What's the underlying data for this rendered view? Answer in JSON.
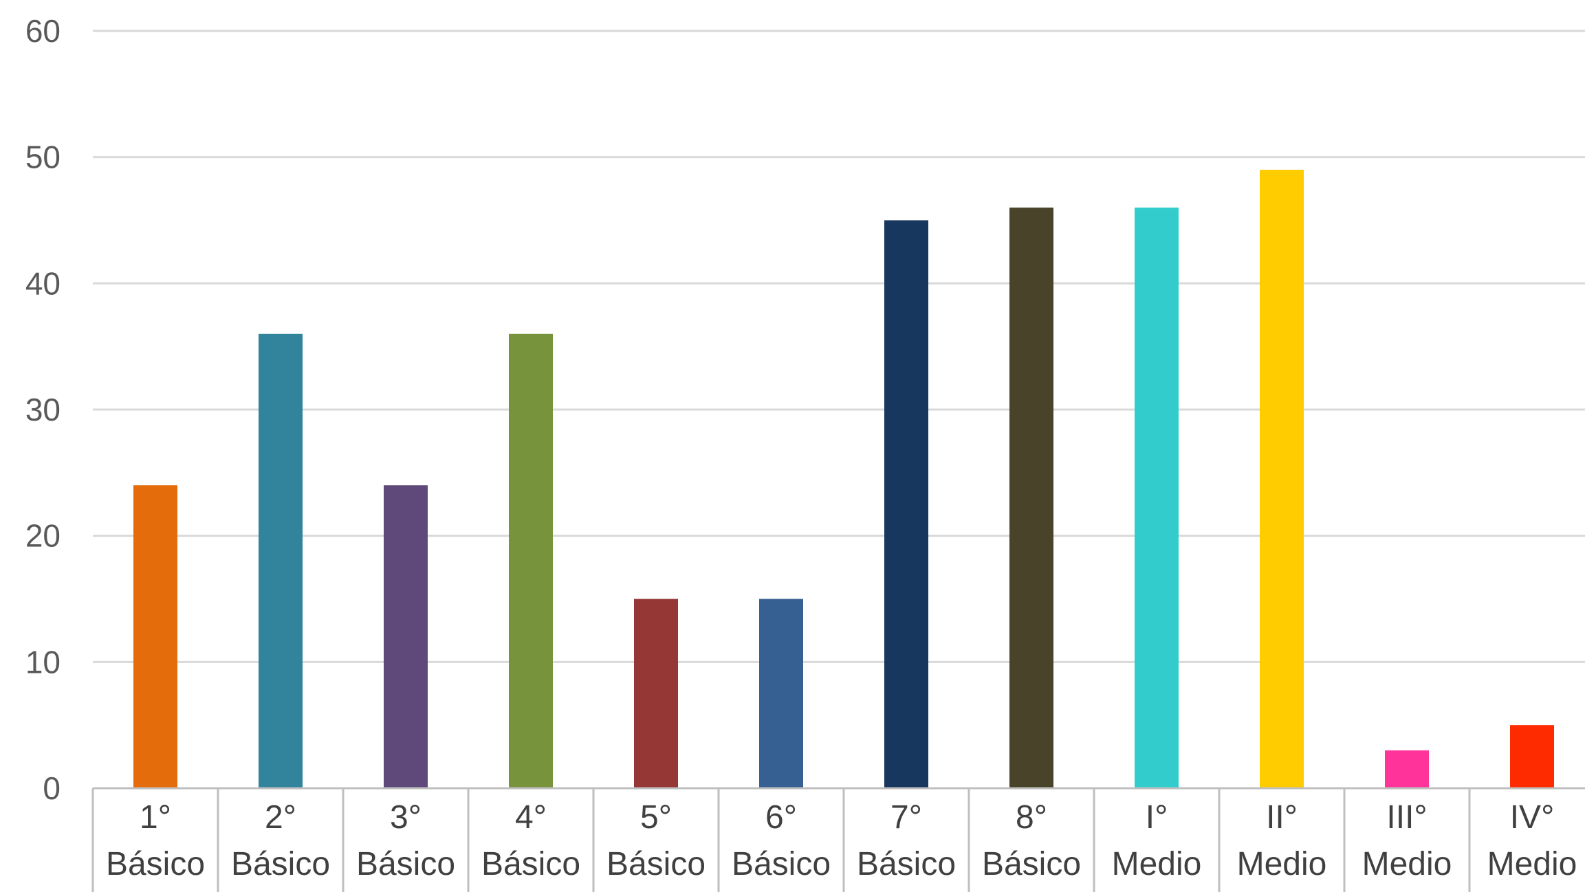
{
  "chart_data": {
    "type": "bar",
    "title": "",
    "xlabel": "",
    "ylabel": "",
    "ylim": [
      0,
      60
    ],
    "yticks": [
      "0",
      "10",
      "20",
      "30",
      "40",
      "50",
      "60"
    ],
    "grid": true,
    "legend": "none",
    "categories": [
      [
        "1°",
        "Básico"
      ],
      [
        "2°",
        "Básico"
      ],
      [
        "3°",
        "Básico"
      ],
      [
        "4°",
        "Básico"
      ],
      [
        "5°",
        "Básico"
      ],
      [
        "6°",
        "Básico"
      ],
      [
        "7°",
        "Básico"
      ],
      [
        "8°",
        "Básico"
      ],
      [
        "I°",
        "Medio"
      ],
      [
        "II°",
        "Medio"
      ],
      [
        "III°",
        "Medio"
      ],
      [
        "IV°",
        "Medio"
      ]
    ],
    "values": [
      24,
      36,
      24,
      36,
      15,
      15,
      45,
      46,
      46,
      49,
      3,
      5
    ],
    "colors": [
      "#E46C0A",
      "#31849B",
      "#5F497A",
      "#77933C",
      "#953735",
      "#376092",
      "#17375E",
      "#494429",
      "#33CCCC",
      "#FFCC00",
      "#FF3399",
      "#FF2B00"
    ],
    "gridline_color": "#d9d9d9",
    "axis_color": "#bfbfbf"
  }
}
